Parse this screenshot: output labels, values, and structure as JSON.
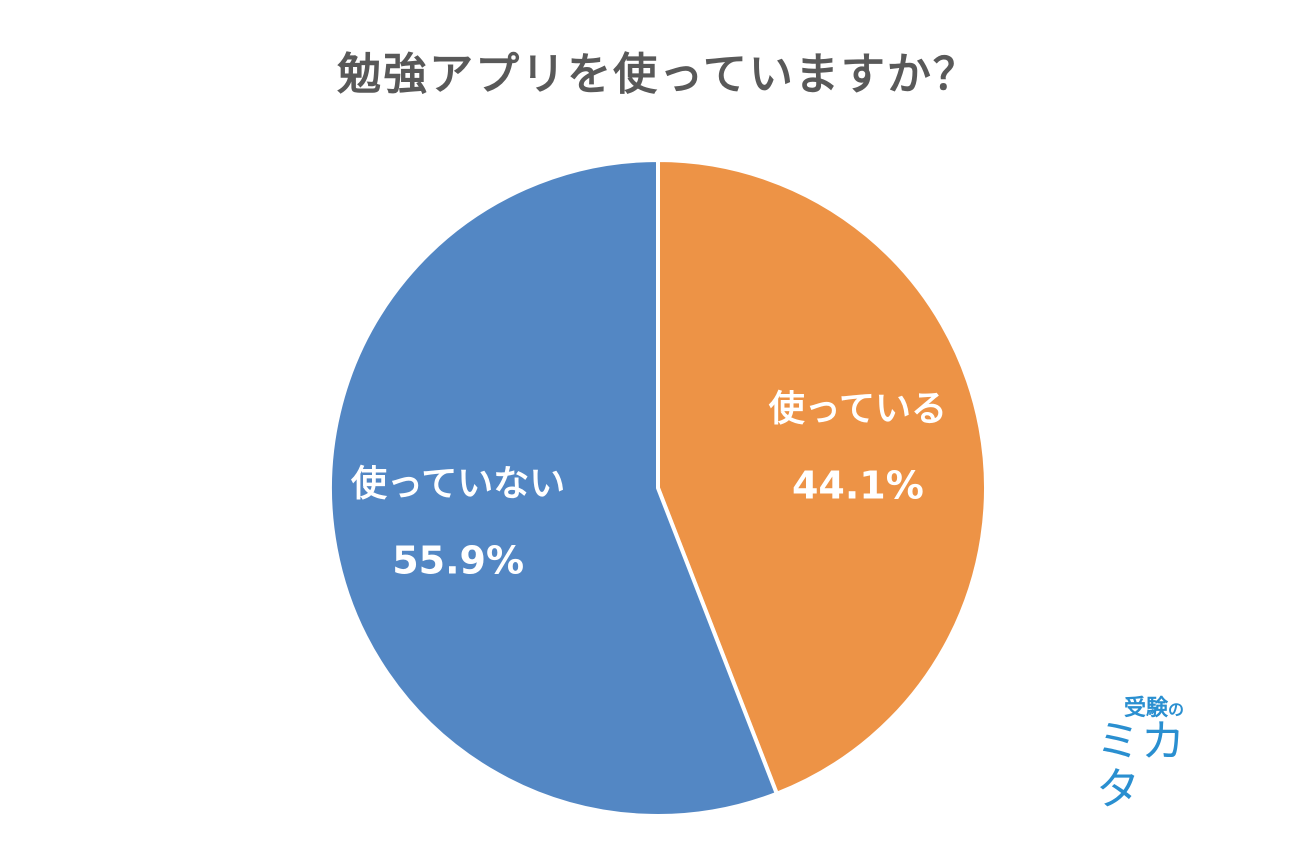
{
  "chart_data": {
    "type": "pie",
    "title": "勉強アプリを使っていますか？",
    "slices": [
      {
        "label": "使っている",
        "value": 44.1,
        "value_label": "44.1%",
        "color": "#ED9346"
      },
      {
        "label": "使っていない",
        "value": 55.9,
        "value_label": "55.9%",
        "color": "#5387C4"
      }
    ],
    "start_angle": "12 o'clock, clockwise",
    "legend": "none (labels inside slices)"
  },
  "logo": {
    "sub": "受験",
    "particle": "の",
    "main": "ミカタ",
    "color": "#2A8FD0"
  }
}
